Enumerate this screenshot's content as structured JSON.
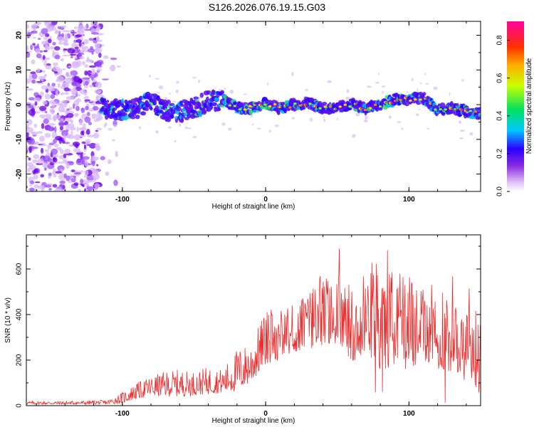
{
  "title": "S126.2026.076.19.15.G03",
  "colors": {
    "snr_line": "#ee2b2b",
    "frame": "#000000"
  },
  "chart_data": [
    {
      "type": "heatmap",
      "title": "S126.2026.076.19.15.G03",
      "xlabel": "Height of straight line (km)",
      "ylabel": "Frequency (Hz)",
      "xlim": [
        -167,
        150
      ],
      "ylim": [
        -25,
        24
      ],
      "x_ticks": [
        -100,
        0,
        100
      ],
      "x_tick_labels": [
        "-100",
        "0",
        "100"
      ],
      "y_ticks": [
        -20,
        -10,
        0,
        10,
        20
      ],
      "y_tick_labels": [
        "-20",
        "-10",
        "0",
        "10",
        "20"
      ],
      "ridge": {
        "x": [
          -115,
          -100,
          -90,
          -80,
          -70,
          -60,
          -50,
          -40,
          -30,
          -20,
          -10,
          0,
          10,
          20,
          30,
          40,
          50,
          60,
          70,
          80,
          90,
          100,
          110,
          120,
          130,
          145
        ],
        "y": [
          -1,
          -1.5,
          -1,
          1,
          -1.5,
          -2,
          -1,
          1,
          1.5,
          -1,
          -1,
          0.5,
          -1,
          0,
          0.5,
          -1,
          -1,
          0,
          -1,
          0,
          1.5,
          1.5,
          2,
          -1.5,
          -1,
          -2.5
        ]
      },
      "colorbar": {
        "label": "Normalized spectral amplitude",
        "range": [
          0.0,
          0.9
        ],
        "ticks": [
          0.0,
          0.2,
          0.4,
          0.6,
          0.8
        ],
        "tick_labels": [
          "0.0",
          "0.2",
          "0.4",
          "0.6",
          "0.8"
        ]
      }
    },
    {
      "type": "line",
      "xlabel": "Height of straight line (km)",
      "ylabel": "SNR (10 * v/v)",
      "xlim": [
        -167,
        150
      ],
      "ylim": [
        0,
        750
      ],
      "x_ticks": [
        -100,
        0,
        100
      ],
      "x_tick_labels": [
        "-100",
        "0",
        "100"
      ],
      "y_ticks": [
        0,
        200,
        400,
        600
      ],
      "y_tick_labels": [
        "0",
        "200",
        "400",
        "600"
      ],
      "series": [
        {
          "name": "SNR",
          "envelope_x": [
            -167,
            -140,
            -110,
            -100,
            -90,
            -80,
            -70,
            -60,
            -50,
            -40,
            -30,
            -20,
            -10,
            0,
            10,
            20,
            30,
            40,
            50,
            60,
            70,
            80,
            90,
            100,
            110,
            120,
            130,
            140,
            150
          ],
          "envelope_low": [
            5,
            5,
            5,
            10,
            30,
            40,
            40,
            40,
            45,
            50,
            55,
            60,
            100,
            180,
            200,
            230,
            250,
            260,
            270,
            200,
            190,
            150,
            180,
            150,
            200,
            150,
            150,
            100,
            50
          ],
          "envelope_high": [
            20,
            20,
            25,
            60,
            100,
            130,
            150,
            160,
            150,
            170,
            160,
            250,
            280,
            420,
            430,
            450,
            500,
            600,
            560,
            580,
            600,
            620,
            600,
            580,
            560,
            520,
            480,
            460,
            440
          ]
        }
      ]
    }
  ]
}
